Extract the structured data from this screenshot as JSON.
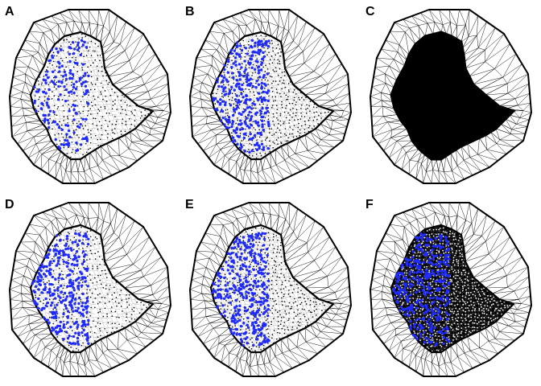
{
  "figure": {
    "panels": [
      {
        "label": "A",
        "inner_density": "medium",
        "points": 160
      },
      {
        "label": "B",
        "inner_density": "dense",
        "points": 300
      },
      {
        "label": "C",
        "inner_density": "solid",
        "points": 0
      },
      {
        "label": "D",
        "inner_density": "medium",
        "points": 320
      },
      {
        "label": "E",
        "inner_density": "dense",
        "points": 360
      },
      {
        "label": "F",
        "inner_density": "very-dense",
        "points": 360
      }
    ],
    "colors": {
      "mesh": "#000000",
      "points": "#1f2bff",
      "background": "#ffffff"
    }
  }
}
